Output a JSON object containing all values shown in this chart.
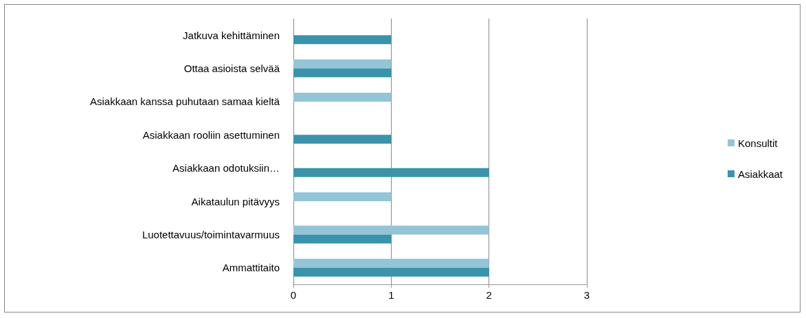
{
  "chart_data": {
    "type": "bar",
    "orientation": "horizontal",
    "categories": [
      "Jatkuva kehittäminen",
      "Ottaa asioista selvää",
      "Asiakkaan kanssa puhutaan samaa kieltä",
      "Asiakkaan rooliin asettuminen",
      "Asiakkaan odotuksiin…",
      "Aikataulun pitävyys",
      "Luotettavuus/toimintavarmuus",
      "Ammattitaito"
    ],
    "series": [
      {
        "name": "Konsultit",
        "color": "#93c5d6",
        "values": [
          0,
          1,
          1,
          0,
          0,
          1,
          2,
          2
        ]
      },
      {
        "name": "Asiakkaat",
        "color": "#3a93ab",
        "values": [
          1,
          1,
          0,
          1,
          2,
          0,
          1,
          2
        ]
      }
    ],
    "xlim": [
      0,
      3
    ],
    "xticks": [
      0,
      1,
      2,
      3
    ],
    "grid": "x",
    "legend": "right"
  }
}
